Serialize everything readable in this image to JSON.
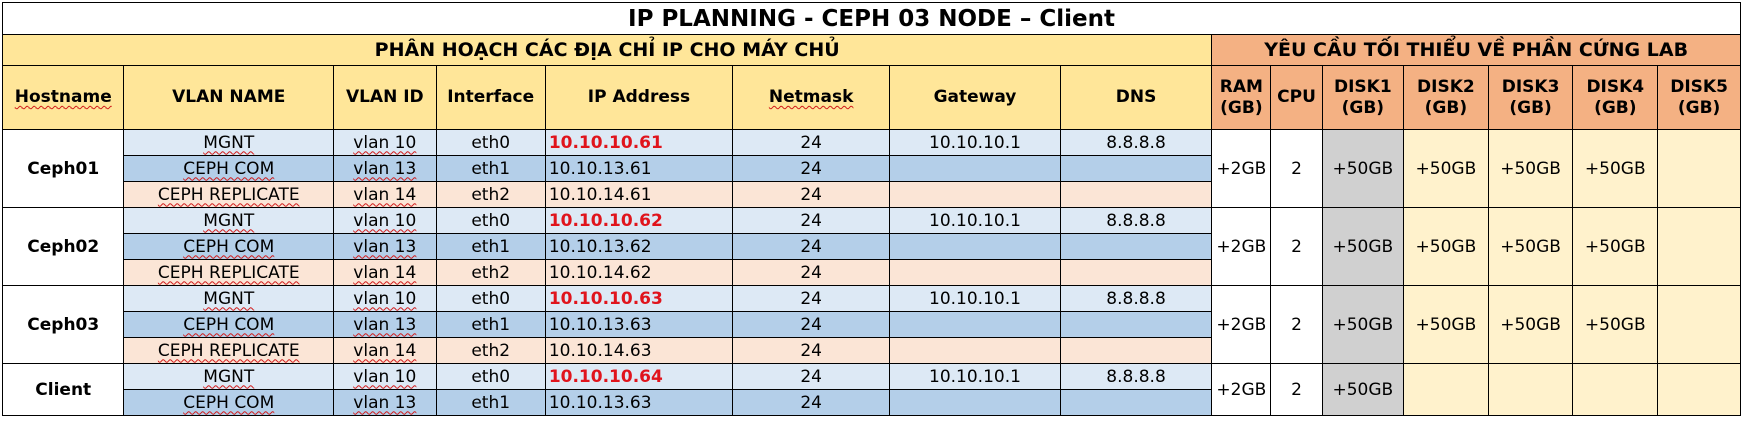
{
  "title": "IP PLANNING  - CEPH 03 NODE – Client",
  "sections": {
    "ip": "PHÂN HOẠCH CÁC ĐỊA CHỈ IP CHO MÁY CHỦ",
    "hardware": "YÊU CẦU TỐI THIỂU VỀ PHẦN CỨNG LAB"
  },
  "columns": {
    "hostname": "Hostname",
    "vlan_name": "VLAN NAME",
    "vlan_id": "VLAN ID",
    "interface": "Interface",
    "ip": "IP Address",
    "netmask": "Netmask",
    "gateway": "Gateway",
    "dns": "DNS",
    "ram": [
      "RAM",
      "(GB)"
    ],
    "cpu": "CPU",
    "disk1": [
      "DISK1",
      "(GB)"
    ],
    "disk2": [
      "DISK2",
      "(GB)"
    ],
    "disk3": [
      "DISK3",
      "(GB)"
    ],
    "disk4": [
      "DISK4",
      "(GB)"
    ],
    "disk5": [
      "DISK5",
      "(GB)"
    ]
  },
  "hosts": [
    {
      "name": "Ceph01",
      "ram": "+2GB",
      "cpu": "2",
      "disk1": "+50GB",
      "disk2": "+50GB",
      "disk3": "+50GB",
      "disk4": "+50GB",
      "disk5": "",
      "rows": [
        {
          "vlan_name": "MGNT",
          "vlan_id": "vlan 10",
          "iface": "eth0",
          "ip": "10.10.10.61",
          "netmask": "24",
          "gateway": "10.10.10.1",
          "dns": "8.8.8.8"
        },
        {
          "vlan_name": "CEPH COM",
          "vlan_id": "vlan 13",
          "iface": "eth1",
          "ip": "10.10.13.61",
          "netmask": "24",
          "gateway": "",
          "dns": ""
        },
        {
          "vlan_name": "CEPH REPLICATE",
          "vlan_id": "vlan 14",
          "iface": "eth2",
          "ip": "10.10.14.61",
          "netmask": "24",
          "gateway": "",
          "dns": ""
        }
      ]
    },
    {
      "name": "Ceph02",
      "ram": "+2GB",
      "cpu": "2",
      "disk1": "+50GB",
      "disk2": "+50GB",
      "disk3": "+50GB",
      "disk4": "+50GB",
      "disk5": "",
      "rows": [
        {
          "vlan_name": "MGNT",
          "vlan_id": "vlan 10",
          "iface": "eth0",
          "ip": "10.10.10.62",
          "netmask": "24",
          "gateway": "10.10.10.1",
          "dns": "8.8.8.8"
        },
        {
          "vlan_name": "CEPH COM",
          "vlan_id": "vlan 13",
          "iface": "eth1",
          "ip": "10.10.13.62",
          "netmask": "24",
          "gateway": "",
          "dns": ""
        },
        {
          "vlan_name": "CEPH REPLICATE",
          "vlan_id": "vlan 14",
          "iface": "eth2",
          "ip": "10.10.14.62",
          "netmask": "24",
          "gateway": "",
          "dns": ""
        }
      ]
    },
    {
      "name": "Ceph03",
      "ram": "+2GB",
      "cpu": "2",
      "disk1": "+50GB",
      "disk2": "+50GB",
      "disk3": "+50GB",
      "disk4": "+50GB",
      "disk5": "",
      "rows": [
        {
          "vlan_name": "MGNT",
          "vlan_id": "vlan 10",
          "iface": "eth0",
          "ip": "10.10.10.63",
          "netmask": "24",
          "gateway": "10.10.10.1",
          "dns": "8.8.8.8"
        },
        {
          "vlan_name": "CEPH COM",
          "vlan_id": "vlan 13",
          "iface": "eth1",
          "ip": "10.10.13.63",
          "netmask": "24",
          "gateway": "",
          "dns": ""
        },
        {
          "vlan_name": "CEPH REPLICATE",
          "vlan_id": "vlan 14",
          "iface": "eth2",
          "ip": "10.10.14.63",
          "netmask": "24",
          "gateway": "",
          "dns": ""
        }
      ]
    },
    {
      "name": "Client",
      "ram": "+2GB",
      "cpu": "2",
      "disk1": "+50GB",
      "disk2": "",
      "disk3": "",
      "disk4": "",
      "disk5": "",
      "rows": [
        {
          "vlan_name": "MGNT",
          "vlan_id": "vlan 10",
          "iface": "eth0",
          "ip": "10.10.10.64",
          "netmask": "24",
          "gateway": "10.10.10.1",
          "dns": "8.8.8.8"
        },
        {
          "vlan_name": "CEPH COM",
          "vlan_id": "vlan 13",
          "iface": "eth1",
          "ip": "10.10.13.63",
          "netmask": "24",
          "gateway": "",
          "dns": ""
        }
      ]
    }
  ],
  "colors": {
    "header_yellow": "#ffe699",
    "header_orange": "#f4b183",
    "row_mgnt": "#dde9f5",
    "row_ceph_com": "#b4cfe9",
    "row_replicate": "#fbe5d6",
    "disk1_fill": "#d0d0d0",
    "disk_empty": "#fff2cc",
    "primary_ip_red": "#e0141c"
  }
}
